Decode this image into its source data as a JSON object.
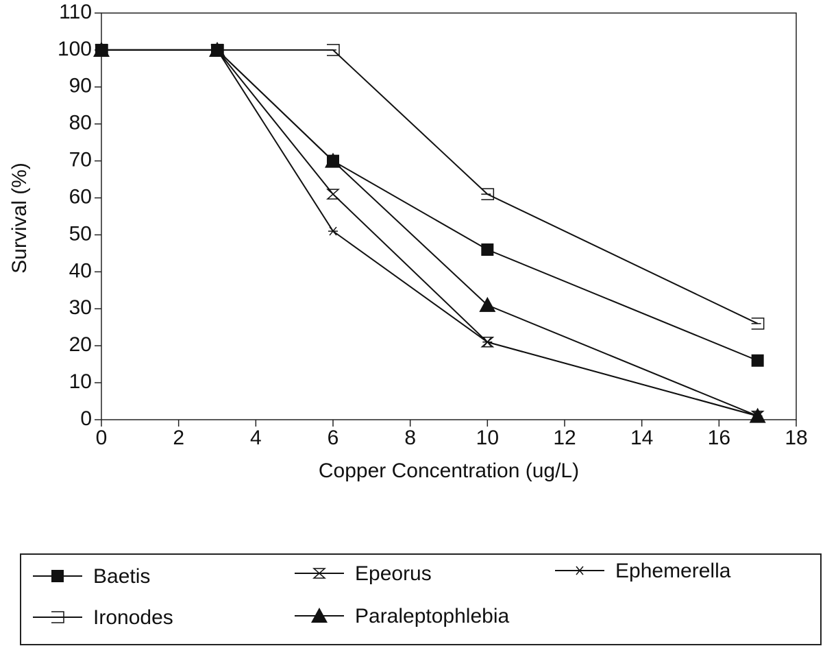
{
  "chart_data": {
    "type": "line",
    "x_label": "Copper Concentration (ug/L)",
    "y_label": "Survival (%)",
    "x": [
      0,
      3,
      6,
      10,
      17
    ],
    "xlim": [
      0,
      18
    ],
    "xticks": [
      0,
      2,
      4,
      6,
      8,
      10,
      12,
      14,
      16,
      18
    ],
    "ylim": [
      0,
      110
    ],
    "yticks": [
      0,
      10,
      20,
      30,
      40,
      50,
      60,
      70,
      80,
      90,
      100,
      110
    ],
    "series": [
      {
        "name": "Baetis",
        "color": "#111111",
        "marker": "square",
        "values": [
          100,
          100,
          70,
          46,
          16
        ]
      },
      {
        "name": "Epeorus",
        "color": "#111111",
        "marker": "hourglass",
        "values": [
          100,
          100,
          61,
          21,
          1
        ]
      },
      {
        "name": "Ephemerella",
        "color": "#111111",
        "marker": "asterisk",
        "values": [
          100,
          100,
          51,
          21,
          1
        ]
      },
      {
        "name": "Ironodes",
        "color": "#111111",
        "marker": "open-rect",
        "values": [
          100,
          100,
          100,
          61,
          26
        ]
      },
      {
        "name": "Paraleptophlebia",
        "color": "#111111",
        "marker": "triangle",
        "values": [
          100,
          100,
          70,
          31,
          1
        ]
      }
    ]
  }
}
